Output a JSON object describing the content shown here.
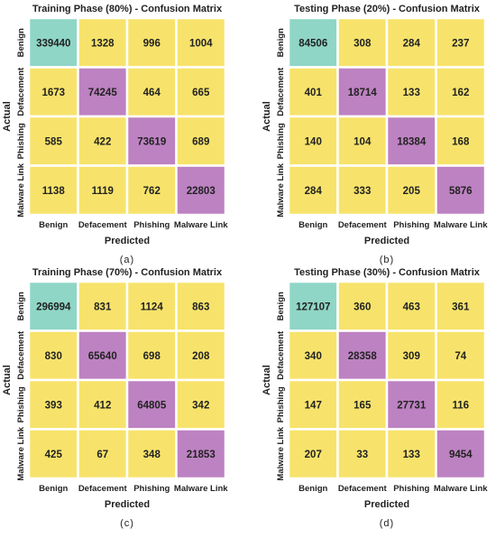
{
  "chart_data": [
    {
      "type": "heatmap",
      "title": "Training Phase (80%) - Confusion Matrix",
      "xlabel": "Predicted",
      "ylabel": "Actual",
      "caption": "(a)",
      "x_labels": [
        "Benign",
        "Defacement",
        "Phishing",
        "Malware Link"
      ],
      "y_labels": [
        "Benign",
        "Defacement",
        "Phishing",
        "Malware Link"
      ],
      "values": [
        [
          339440,
          1328,
          996,
          1004
        ],
        [
          1673,
          74245,
          464,
          665
        ],
        [
          585,
          422,
          73619,
          689
        ],
        [
          1138,
          1119,
          762,
          22803
        ]
      ]
    },
    {
      "type": "heatmap",
      "title": "Testing Phase (20%) - Confusion Matrix",
      "xlabel": "Predicted",
      "ylabel": "Actual",
      "caption": "(b)",
      "x_labels": [
        "Benign",
        "Defacement",
        "Phishing",
        "Malware Link"
      ],
      "y_labels": [
        "Benign",
        "Defacement",
        "Phishing",
        "Malware Link"
      ],
      "values": [
        [
          84506,
          308,
          284,
          237
        ],
        [
          401,
          18714,
          133,
          162
        ],
        [
          140,
          104,
          18384,
          168
        ],
        [
          284,
          333,
          205,
          5876
        ]
      ]
    },
    {
      "type": "heatmap",
      "title": "Training Phase (70%) - Confusion Matrix",
      "xlabel": "Predicted",
      "ylabel": "Actual",
      "caption": "(c)",
      "x_labels": [
        "Benign",
        "Defacement",
        "Phishing",
        "Malware Link"
      ],
      "y_labels": [
        "Benign",
        "Defacement",
        "Phishing",
        "Malware Link"
      ],
      "values": [
        [
          296994,
          831,
          1124,
          863
        ],
        [
          830,
          65640,
          698,
          208
        ],
        [
          393,
          412,
          64805,
          342
        ],
        [
          425,
          67,
          348,
          21853
        ]
      ]
    },
    {
      "type": "heatmap",
      "title": "Testing Phase (30%) - Confusion Matrix",
      "xlabel": "Predicted",
      "ylabel": "Actual",
      "caption": "(d)",
      "x_labels": [
        "Benign",
        "Defacement",
        "Phishing",
        "Malware Link"
      ],
      "y_labels": [
        "Benign",
        "Defacement",
        "Phishing",
        "Malware Link"
      ],
      "values": [
        [
          127107,
          360,
          463,
          361
        ],
        [
          340,
          28358,
          309,
          74
        ],
        [
          147,
          165,
          27731,
          116
        ],
        [
          207,
          33,
          133,
          9454
        ]
      ]
    }
  ],
  "colors": {
    "off_diagonal": "#f7e36b",
    "diagonal_first": "#8fd6c6",
    "diagonal": "#bd82c2",
    "grid": "#ffffff"
  }
}
